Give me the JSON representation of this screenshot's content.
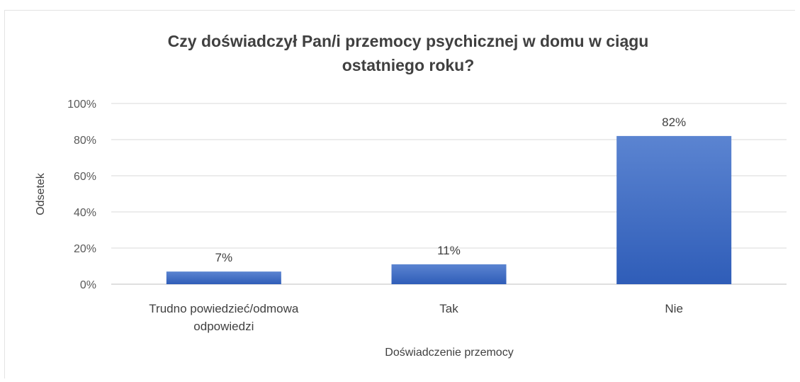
{
  "chart_data": {
    "type": "bar",
    "title_lines": [
      "Czy doświadczył Pan/i przemocy psychicznej w domu w ciągu",
      "ostatniego roku?"
    ],
    "xlabel": "Doświadczenie przemocy",
    "ylabel": "Odsetek",
    "categories": [
      {
        "lines": [
          "Trudno powiedzieć/odmowa",
          "odpowiedzi"
        ]
      },
      {
        "lines": [
          "Tak"
        ]
      },
      {
        "lines": [
          "Nie"
        ]
      }
    ],
    "values": [
      7,
      11,
      82
    ],
    "data_labels": [
      "7%",
      "11%",
      "82%"
    ],
    "yticks": [
      0,
      20,
      40,
      60,
      80,
      100
    ],
    "ytick_labels": [
      "0%",
      "20%",
      "40%",
      "60%",
      "80%",
      "100%"
    ],
    "ylim": [
      0,
      100
    ],
    "grid": true,
    "legend": "none",
    "colors": {
      "bar_top": "#5b84d1",
      "bar_bottom": "#2f5db8",
      "grid": "#d9d9d9",
      "axis": "#bfbfbf"
    }
  }
}
